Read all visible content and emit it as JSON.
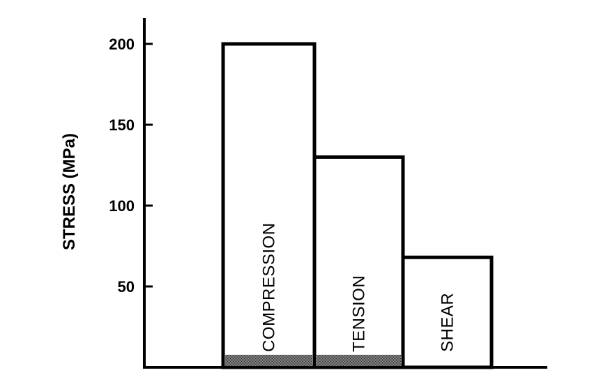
{
  "chart_data": {
    "type": "bar",
    "title": "",
    "xlabel": "",
    "ylabel": "STRESS (MPa)",
    "categories": [
      "COMPRESSION",
      "TENSION",
      "SHEAR"
    ],
    "values": [
      200,
      130,
      68
    ],
    "ylim": [
      0,
      215
    ],
    "yticks": [
      50,
      100,
      150,
      200
    ],
    "grid": false,
    "legend": "none",
    "colors": {
      "bar_fill": "#ffffff",
      "bar_stroke": "#000000",
      "base_shade": "#555555"
    }
  }
}
